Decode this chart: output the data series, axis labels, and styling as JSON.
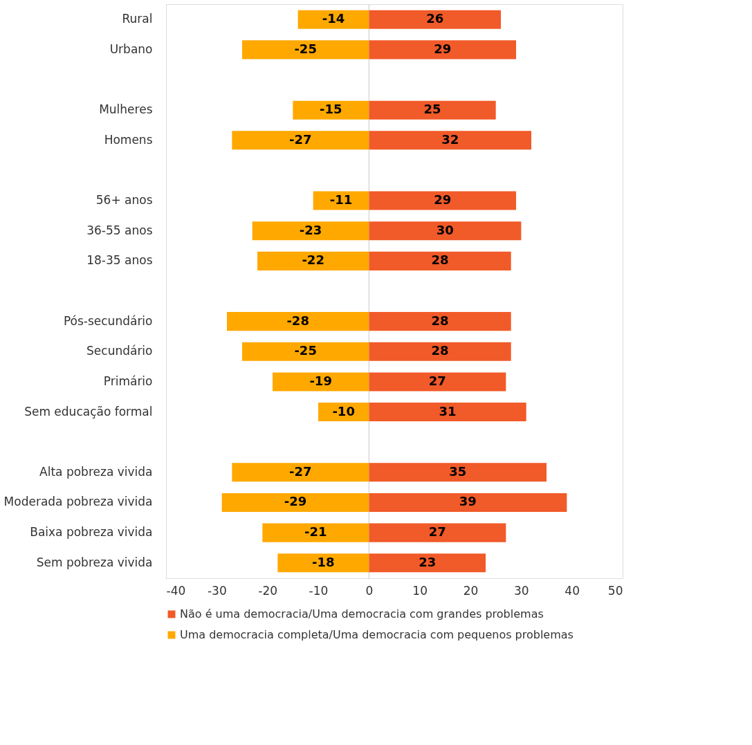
{
  "chart_data": {
    "type": "bar",
    "orientation": "horizontal",
    "stacked": true,
    "categories": [
      "Rural",
      "Urbano",
      null,
      "Mulheres",
      "Homens",
      null,
      "56+ anos",
      "36-55 anos",
      "18-35 anos",
      null,
      "Pós-secundário",
      "Secundário",
      "Primário",
      "Sem educação formal",
      null,
      "Alta pobreza vivida",
      "Moderada pobreza vivida",
      "Baixa pobreza vivida",
      "Sem pobreza vivida"
    ],
    "series": [
      {
        "name": "Não é uma democracia/Uma democracia com grandes problemas",
        "color": "#f15a29",
        "values": [
          26,
          29,
          null,
          25,
          32,
          null,
          29,
          30,
          28,
          null,
          28,
          28,
          27,
          31,
          null,
          35,
          39,
          27,
          23
        ]
      },
      {
        "name": "Uma democracia completa/Uma democracia com pequenos problemas",
        "color": "#ffa800",
        "values": [
          -14,
          -25,
          null,
          -15,
          -27,
          null,
          -11,
          -23,
          -22,
          null,
          -28,
          -25,
          -19,
          -10,
          null,
          -27,
          -29,
          -21,
          -18
        ]
      }
    ],
    "xlim": [
      -40,
      50
    ],
    "xticks": [
      -40,
      -30,
      -20,
      -10,
      0,
      10,
      20,
      30,
      40,
      50
    ],
    "ref_lines": [
      {
        "axis": "x",
        "value": 0,
        "color": "#d9d9d9"
      }
    ],
    "data_labels": true,
    "grid": false,
    "legend": "bottom"
  }
}
